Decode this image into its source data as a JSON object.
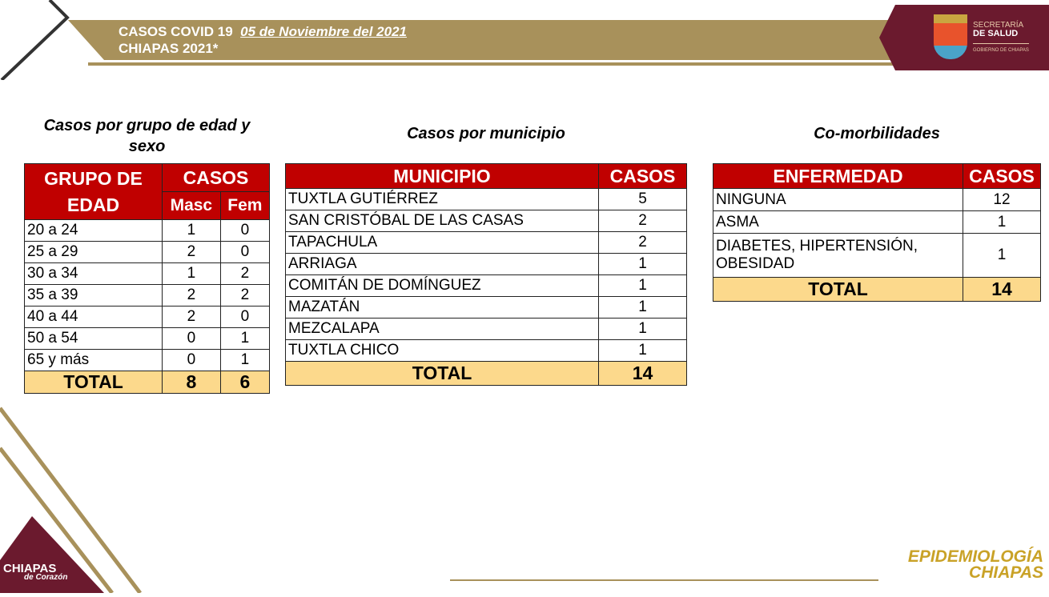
{
  "header": {
    "title_prefix": "CASOS COVID 19",
    "date": "05 de Noviembre del 2021",
    "subtitle": "CHIAPAS 2021*"
  },
  "logo": {
    "line1": "SECRETARÍA",
    "line2": "DE SALUD",
    "line3": "GOBIERNO DE CHIAPAS"
  },
  "colors": {
    "header_red": "#c00000",
    "total_bg": "#fcd98c",
    "gold": "#a8915b",
    "maroon": "#6b1a2e"
  },
  "age_table": {
    "section_title": "Casos por grupo de edad y sexo",
    "col_group": "GRUPO DE EDAD",
    "col_cases": "CASOS",
    "col_m": "Masc",
    "col_f": "Fem",
    "rows": [
      {
        "g": "20 a 24",
        "m": "1",
        "f": "0"
      },
      {
        "g": "25 a 29",
        "m": "2",
        "f": "0"
      },
      {
        "g": "30 a 34",
        "m": "1",
        "f": "2"
      },
      {
        "g": "35 a 39",
        "m": "2",
        "f": "2"
      },
      {
        "g": "40 a 44",
        "m": "2",
        "f": "0"
      },
      {
        "g": "50 a 54",
        "m": "0",
        "f": "1"
      },
      {
        "g": "65 y más",
        "m": "0",
        "f": "1"
      }
    ],
    "total_label": "TOTAL",
    "total_m": "8",
    "total_f": "6"
  },
  "mun_table": {
    "section_title": "Casos por municipio",
    "col_mun": "MUNICIPIO",
    "col_cases": "CASOS",
    "rows": [
      {
        "m": "TUXTLA GUTIÉRREZ",
        "c": "5"
      },
      {
        "m": "SAN CRISTÓBAL DE LAS CASAS",
        "c": "2"
      },
      {
        "m": "TAPACHULA",
        "c": "2"
      },
      {
        "m": "ARRIAGA",
        "c": "1"
      },
      {
        "m": "COMITÁN DE DOMÍNGUEZ",
        "c": "1"
      },
      {
        "m": "MAZATÁN",
        "c": "1"
      },
      {
        "m": "MEZCALAPA",
        "c": "1"
      },
      {
        "m": "TUXTLA CHICO",
        "c": "1"
      }
    ],
    "total_label": "TOTAL",
    "total": "14"
  },
  "com_table": {
    "section_title": "Co-morbilidades",
    "col_dis": "ENFERMEDAD",
    "col_cases": "CASOS",
    "rows": [
      {
        "d": "NINGUNA",
        "c": "12"
      },
      {
        "d": "ASMA",
        "c": "1"
      },
      {
        "d": "DIABETES, HIPERTENSIÓN, OBESIDAD",
        "c": "1"
      }
    ],
    "total_label": "TOTAL",
    "total": "14"
  },
  "footer": {
    "brand_line1": "EPIDEMIOLOGÍA",
    "brand_line2": "CHIAPAS",
    "corner_line1": "CHIAPAS",
    "corner_line2": "de Corazón"
  }
}
